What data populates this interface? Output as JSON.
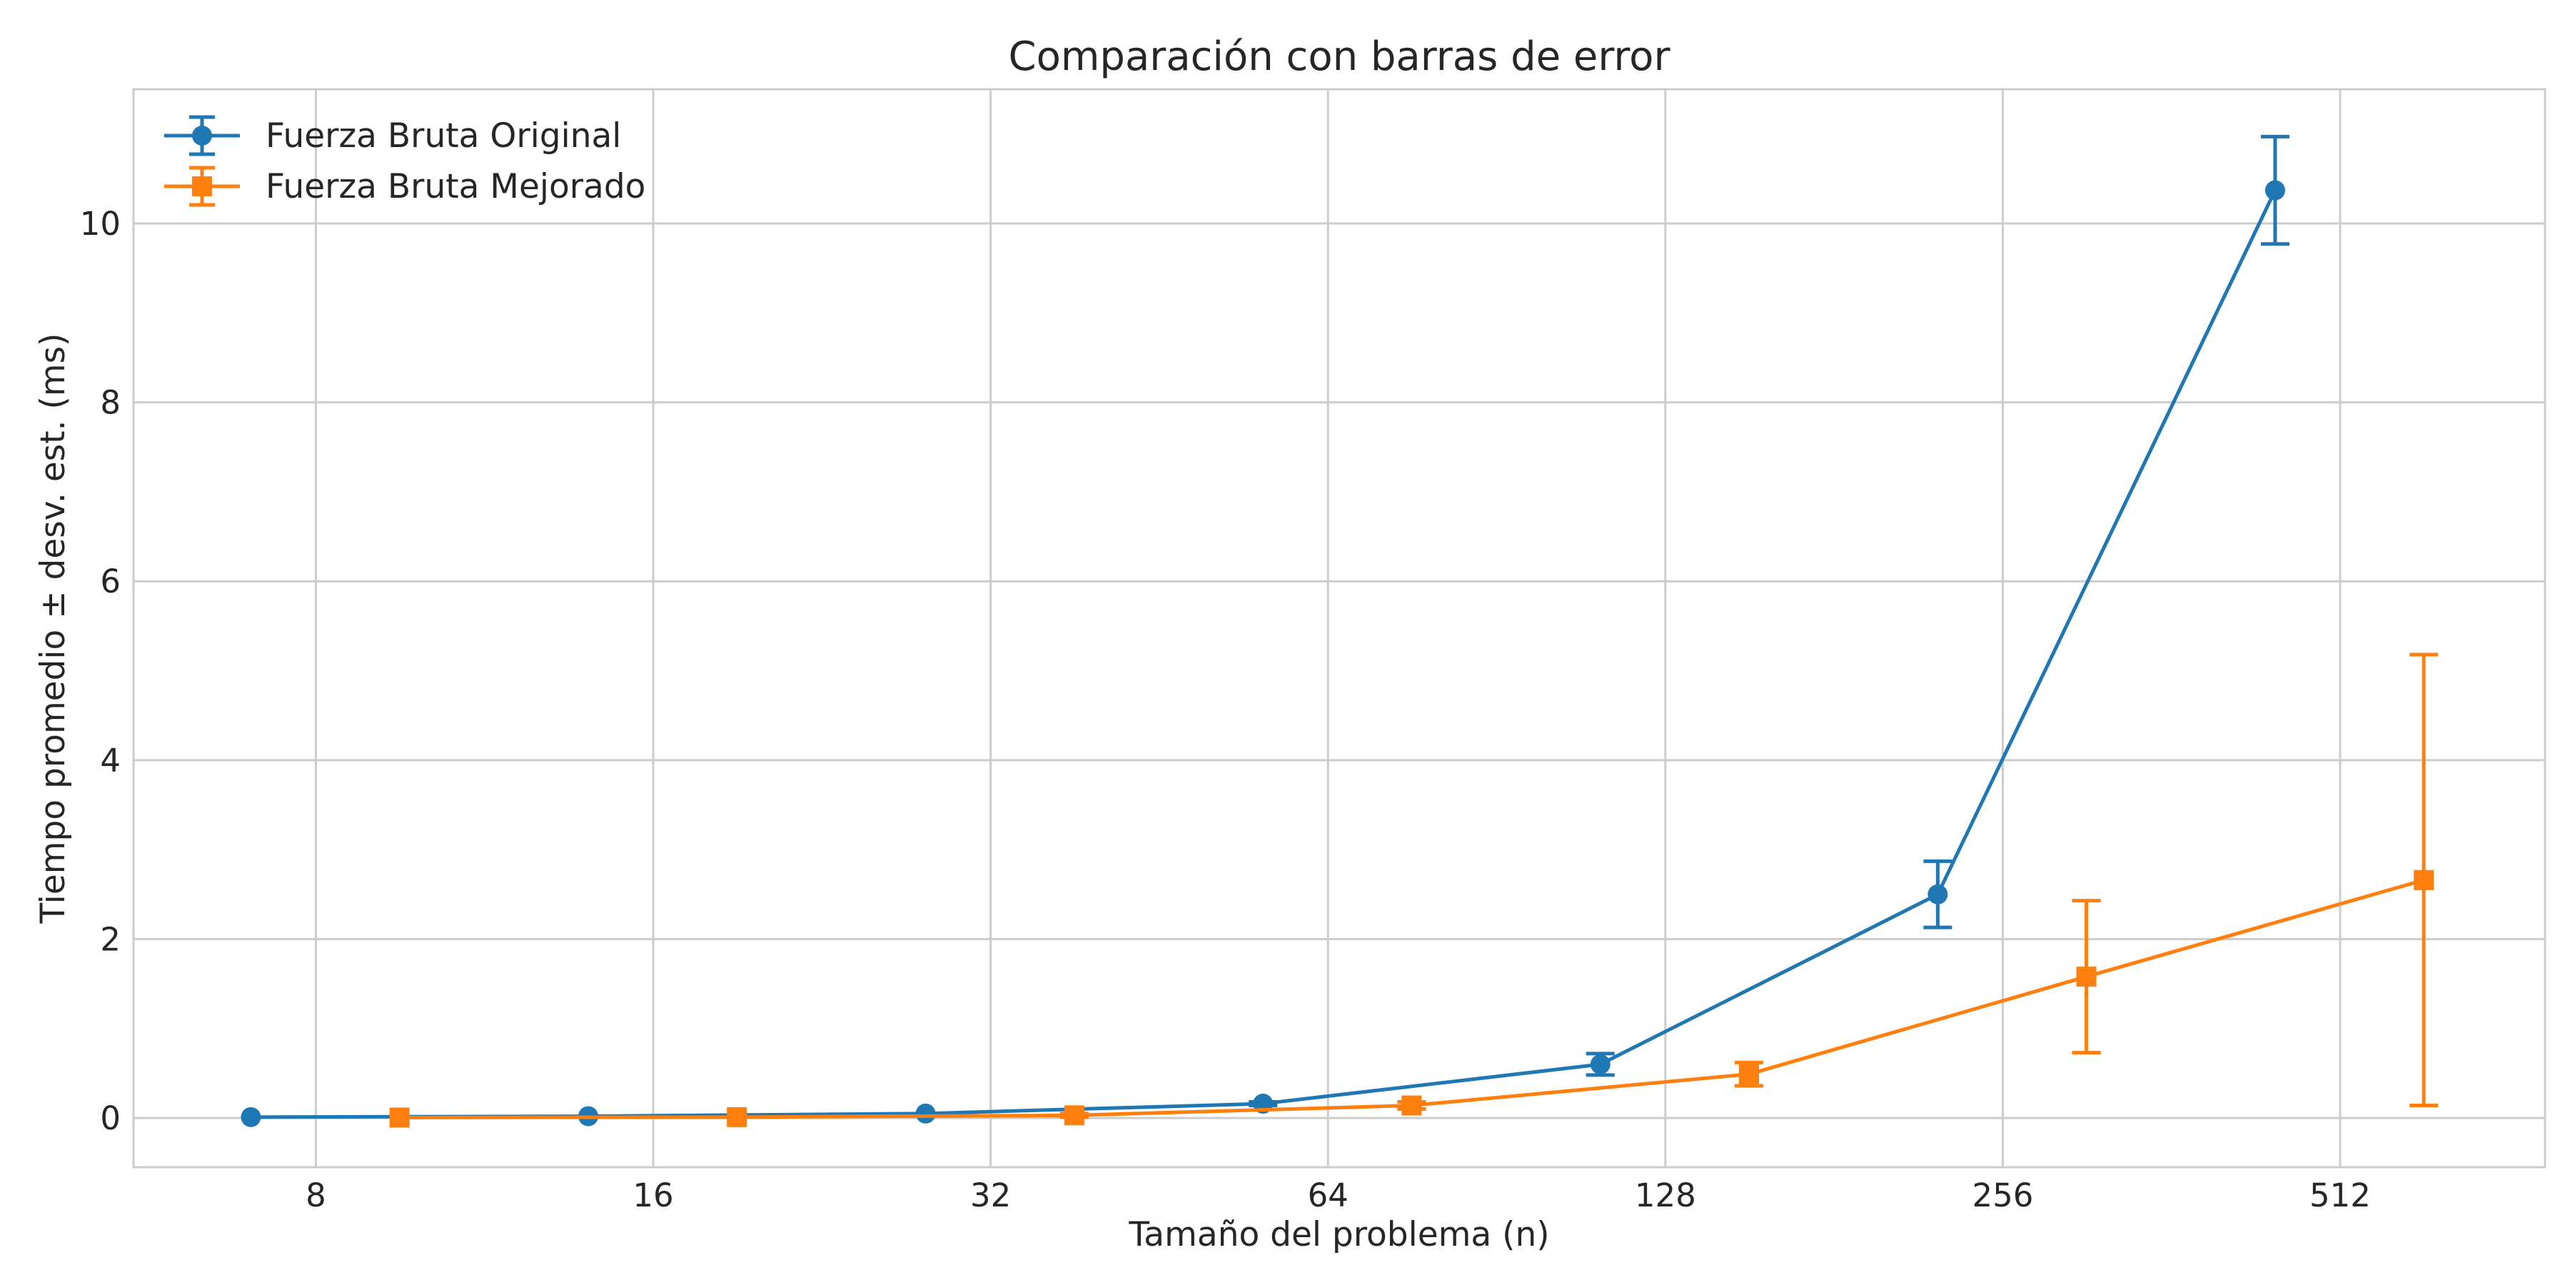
{
  "chart_data": {
    "type": "line",
    "title": "Comparación con barras de error",
    "xlabel": "Tamaño del problema (n)",
    "ylabel": "Tiempo promedio ± desv. est. (ms)",
    "x_scale": "log2",
    "x_ticks": [
      8,
      16,
      32,
      64,
      128,
      256,
      512
    ],
    "y_ticks": [
      0,
      2,
      4,
      6,
      8,
      10
    ],
    "xlim": [
      5.5,
      780
    ],
    "ylim": [
      -0.55,
      11.5
    ],
    "grid": true,
    "legend": "top-left",
    "series": [
      {
        "name": "Fuerza Bruta Original",
        "color": "#1f77b4",
        "marker": "circle",
        "x": [
          7,
          14,
          28,
          56,
          112,
          224,
          448
        ],
        "y": [
          0.01,
          0.02,
          0.05,
          0.16,
          0.6,
          2.5,
          10.37
        ],
        "err": [
          0.0,
          0.0,
          0.0,
          0.02,
          0.12,
          0.37,
          0.6
        ]
      },
      {
        "name": "Fuerza Bruta Mejorado",
        "color": "#ff7f0e",
        "marker": "square",
        "x": [
          9.5,
          19,
          38,
          76,
          152,
          304,
          608
        ],
        "y": [
          0.005,
          0.01,
          0.03,
          0.14,
          0.49,
          1.58,
          2.66
        ],
        "err": [
          0.0,
          0.0,
          0.02,
          0.04,
          0.13,
          0.85,
          2.52
        ]
      }
    ]
  }
}
